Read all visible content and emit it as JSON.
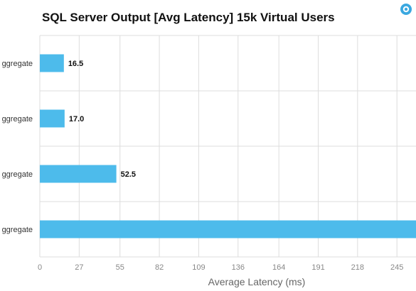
{
  "chart_data": {
    "type": "bar",
    "orientation": "horizontal",
    "title": "SQL Server Output [Avg Latency] 15k Virtual Users",
    "categories": [
      "ggregate",
      "ggregate",
      "ggregate",
      "ggregate"
    ],
    "values": [
      16.5,
      17.0,
      52.5,
      277
    ],
    "value_labels": [
      "16.5",
      "17.0",
      "52.5",
      ""
    ],
    "xlabel": "Average Latency (ms)",
    "ylabel": "",
    "x_ticks": [
      "0",
      "27",
      "55",
      "82",
      "109",
      "136",
      "164",
      "191",
      "218",
      "245"
    ],
    "x_tick_values": [
      0,
      27,
      55,
      82,
      109,
      136,
      164,
      191,
      218,
      245
    ],
    "xlim": [
      0,
      272
    ],
    "grid": true,
    "legend": "none",
    "bar_color": "#4dbbeb"
  },
  "colors": {
    "grid": "#dddddd",
    "brand": "#3aa8e0"
  },
  "icons": {
    "brand": "logo-icon"
  }
}
